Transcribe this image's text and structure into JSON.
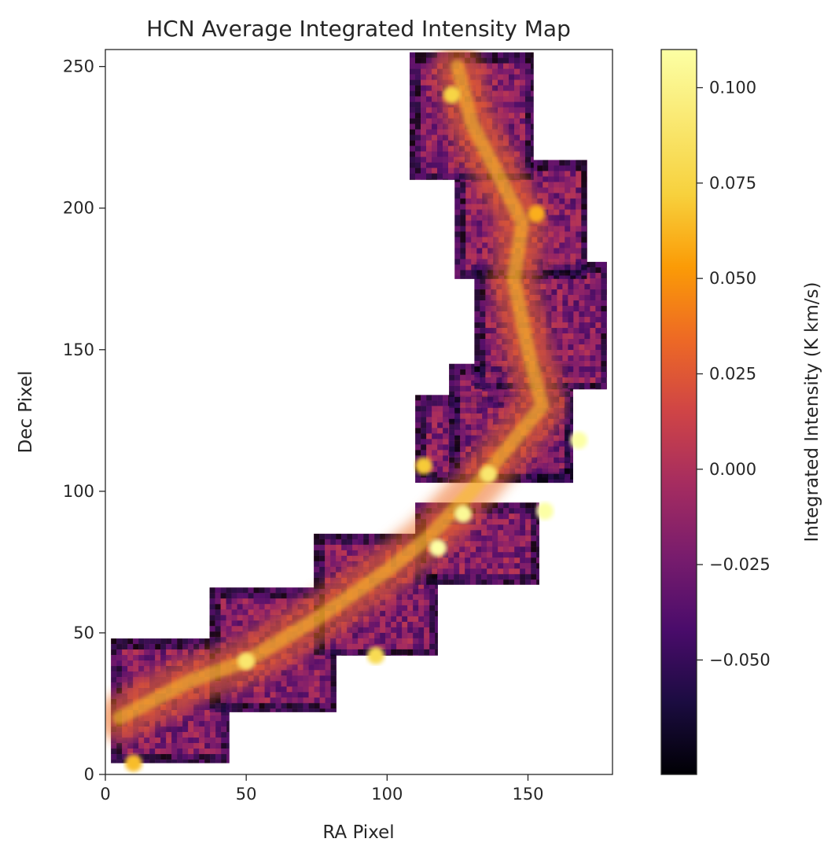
{
  "chart_data": {
    "type": "heatmap",
    "title": "HCN Average Integrated Intensity Map",
    "xlabel": "RA Pixel",
    "ylabel": "Dec Pixel",
    "xlim": [
      0,
      180
    ],
    "ylim": [
      0,
      256
    ],
    "x_ticks": [
      0,
      50,
      100,
      150
    ],
    "y_ticks": [
      0,
      50,
      100,
      150,
      200,
      250
    ],
    "grid": false,
    "colormap": "inferno",
    "colorbar": {
      "label": "Integrated Intensity (K km/s)",
      "range": [
        -0.08,
        0.11
      ],
      "ticks": [
        -0.05,
        -0.025,
        0.0,
        0.025,
        0.05,
        0.075,
        0.1
      ],
      "tick_labels": [
        "−0.050",
        "−0.025",
        "0.000",
        "0.025",
        "0.050",
        "0.075",
        "0.100"
      ]
    },
    "mapped_regions": [
      {
        "x": [
          2,
          44
        ],
        "y": [
          4,
          48
        ]
      },
      {
        "x": [
          37,
          82
        ],
        "y": [
          22,
          66
        ]
      },
      {
        "x": [
          74,
          118
        ],
        "y": [
          42,
          85
        ]
      },
      {
        "x": [
          110,
          154
        ],
        "y": [
          67,
          96
        ]
      },
      {
        "x": [
          110,
          166
        ],
        "y": [
          103,
          134
        ]
      },
      {
        "x": [
          122,
          166
        ],
        "y": [
          103,
          145
        ]
      },
      {
        "x": [
          131,
          178
        ],
        "y": [
          136,
          181
        ]
      },
      {
        "x": [
          124,
          171
        ],
        "y": [
          175,
          217
        ]
      },
      {
        "x": [
          108,
          152
        ],
        "y": [
          210,
          255
        ]
      }
    ],
    "filament_ridge": [
      {
        "x": 5,
        "y": 20
      },
      {
        "x": 30,
        "y": 33
      },
      {
        "x": 50,
        "y": 40
      },
      {
        "x": 75,
        "y": 55
      },
      {
        "x": 100,
        "y": 72
      },
      {
        "x": 115,
        "y": 84
      },
      {
        "x": 130,
        "y": 100
      },
      {
        "x": 140,
        "y": 112
      },
      {
        "x": 155,
        "y": 130
      },
      {
        "x": 150,
        "y": 150
      },
      {
        "x": 145,
        "y": 175
      },
      {
        "x": 148,
        "y": 195
      },
      {
        "x": 130,
        "y": 230
      },
      {
        "x": 125,
        "y": 250
      }
    ],
    "bright_spots": [
      {
        "x": 50,
        "y": 40,
        "value": 0.09
      },
      {
        "x": 118,
        "y": 80,
        "value": 0.11
      },
      {
        "x": 127,
        "y": 92,
        "value": 0.105
      },
      {
        "x": 136,
        "y": 106,
        "value": 0.09
      },
      {
        "x": 168,
        "y": 118,
        "value": 0.11
      },
      {
        "x": 156,
        "y": 93,
        "value": 0.11
      },
      {
        "x": 113,
        "y": 109,
        "value": 0.07
      },
      {
        "x": 10,
        "y": 4,
        "value": 0.065
      },
      {
        "x": 96,
        "y": 42,
        "value": 0.08
      },
      {
        "x": 123,
        "y": 240,
        "value": 0.075
      },
      {
        "x": 153,
        "y": 198,
        "value": 0.06
      }
    ]
  }
}
